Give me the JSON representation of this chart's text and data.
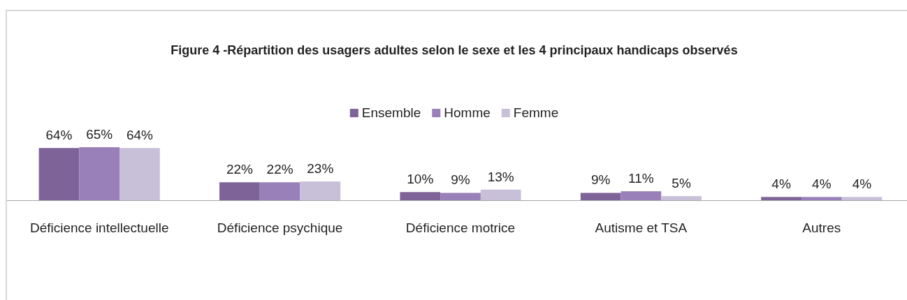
{
  "chart_data": {
    "type": "bar",
    "title": "Figure 4 -Répartition des usagers adultes selon le sexe et les 4 principaux handicaps observés",
    "categories": [
      "Déficience intellectuelle",
      "Déficience psychique",
      "Déficience motrice",
      "Autisme et TSA",
      "Autres"
    ],
    "series": [
      {
        "name": "Ensemble",
        "color": "#7d6397",
        "values": [
          64,
          22,
          10,
          9,
          4
        ],
        "value_labels": [
          "64%",
          "22%",
          "10%",
          "9%",
          "4%"
        ]
      },
      {
        "name": "Homme",
        "color": "#9a80b8",
        "values": [
          65,
          22,
          9,
          11,
          4
        ],
        "value_labels": [
          "65%",
          "22%",
          "9%",
          "11%",
          "4%"
        ]
      },
      {
        "name": "Femme",
        "color": "#c8bfd8",
        "values": [
          64,
          23,
          13,
          5,
          4
        ],
        "value_labels": [
          "64%",
          "23%",
          "13%",
          "5%",
          "4%"
        ]
      }
    ],
    "legend": "top"
  }
}
